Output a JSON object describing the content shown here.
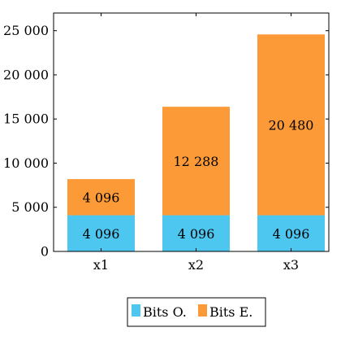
{
  "chart_data": {
    "type": "bar",
    "stacked": true,
    "categories": [
      "x1",
      "x2",
      "x3"
    ],
    "series": [
      {
        "name": "Bits O.",
        "values": [
          4096,
          4096,
          4096
        ],
        "color": "#4dc6f0"
      },
      {
        "name": "Bits E.",
        "values": [
          4096,
          12288,
          20480
        ],
        "color": "#fb9a36"
      }
    ],
    "data_labels": [
      [
        "4 096",
        "4 096",
        "4 096"
      ],
      [
        "4 096",
        "12 288",
        "20 480"
      ]
    ],
    "y_ticks": [
      0,
      5000,
      10000,
      15000,
      20000,
      25000
    ],
    "y_tick_labels": [
      "0",
      "5 000",
      "10 000",
      "15 000",
      "20 000",
      "25 000"
    ],
    "ylim": [
      0,
      27000
    ],
    "title": "",
    "xlabel": "",
    "ylabel": "",
    "grid": false,
    "legend_position": "bottom-center"
  }
}
